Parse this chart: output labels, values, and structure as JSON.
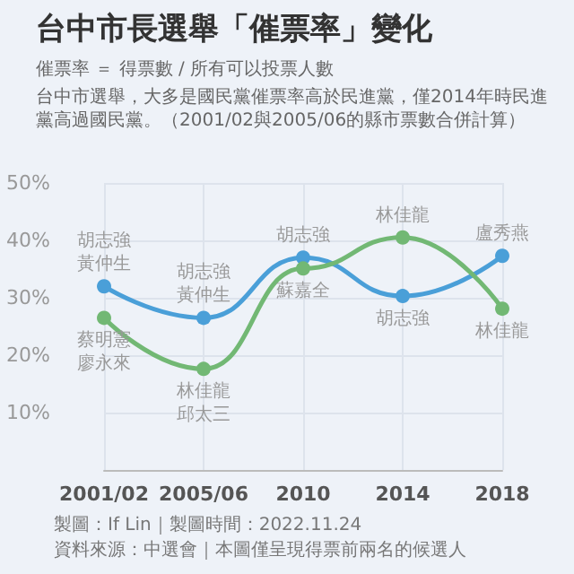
{
  "chart_data": {
    "type": "line",
    "title": "台中市長選舉「催票率」變化",
    "subtitle": "催票率 ＝ 得票數 / 所有可以投票人數",
    "categories": [
      "2001/02",
      "2005/06",
      "2010",
      "2014",
      "2018"
    ],
    "series": [
      {
        "color": "#4a9fd8",
        "values": [
          32,
          26.5,
          37,
          30.3,
          37.3
        ]
      },
      {
        "color": "#72b874",
        "values": [
          26.5,
          17.6,
          35.1,
          40.5,
          28.1
        ]
      }
    ],
    "ylim": [
      0,
      50
    ],
    "yticks": [
      {
        "value": 10,
        "label": "10%"
      },
      {
        "value": 20,
        "label": "20%"
      },
      {
        "value": 30,
        "label": "30%"
      },
      {
        "value": 40,
        "label": "40%"
      },
      {
        "value": 50,
        "label": "50%"
      }
    ],
    "grid": true,
    "marker": "circle",
    "line_style": "solid",
    "annotations": [
      "台中市選舉，大多是國民黨催票率高於民進黨，僅2014年時民進黨高過國民黨。（2001/02與2005/06的縣市票數合併計算）",
      {
        "text": "胡志強",
        "x": "2001/02",
        "y": 32
      },
      {
        "text": "黃仲生",
        "x": "2001/02",
        "y": 32
      },
      {
        "text": "蔡明憲",
        "x": "2001/02",
        "y": 26.5
      },
      {
        "text": "廖永來",
        "x": "2001/02",
        "y": 26.5
      },
      {
        "text": "胡志強",
        "x": "2005/06",
        "y": 26.5
      },
      {
        "text": "黃仲生",
        "x": "2005/06",
        "y": 26.5
      },
      {
        "text": "林佳龍",
        "x": "2005/06",
        "y": 17.6
      },
      {
        "text": "邱太三",
        "x": "2005/06",
        "y": 17.6
      },
      {
        "text": "胡志強",
        "x": "2010",
        "y": 37
      },
      {
        "text": "蘇嘉全",
        "x": "2010",
        "y": 35.1
      },
      {
        "text": "林佳龍",
        "x": "2014",
        "y": 40.5
      },
      {
        "text": "胡志強",
        "x": "2014",
        "y": 30.3
      },
      {
        "text": "盧秀燕",
        "x": "2018",
        "y": 37.3
      },
      {
        "text": "林佳龍",
        "x": "2018",
        "y": 28.1
      },
      "製圖：If Lin｜製圖時間：2022.11.24",
      "資料來源：中選會｜本圖僅呈現得票前兩名的候選人"
    ]
  }
}
